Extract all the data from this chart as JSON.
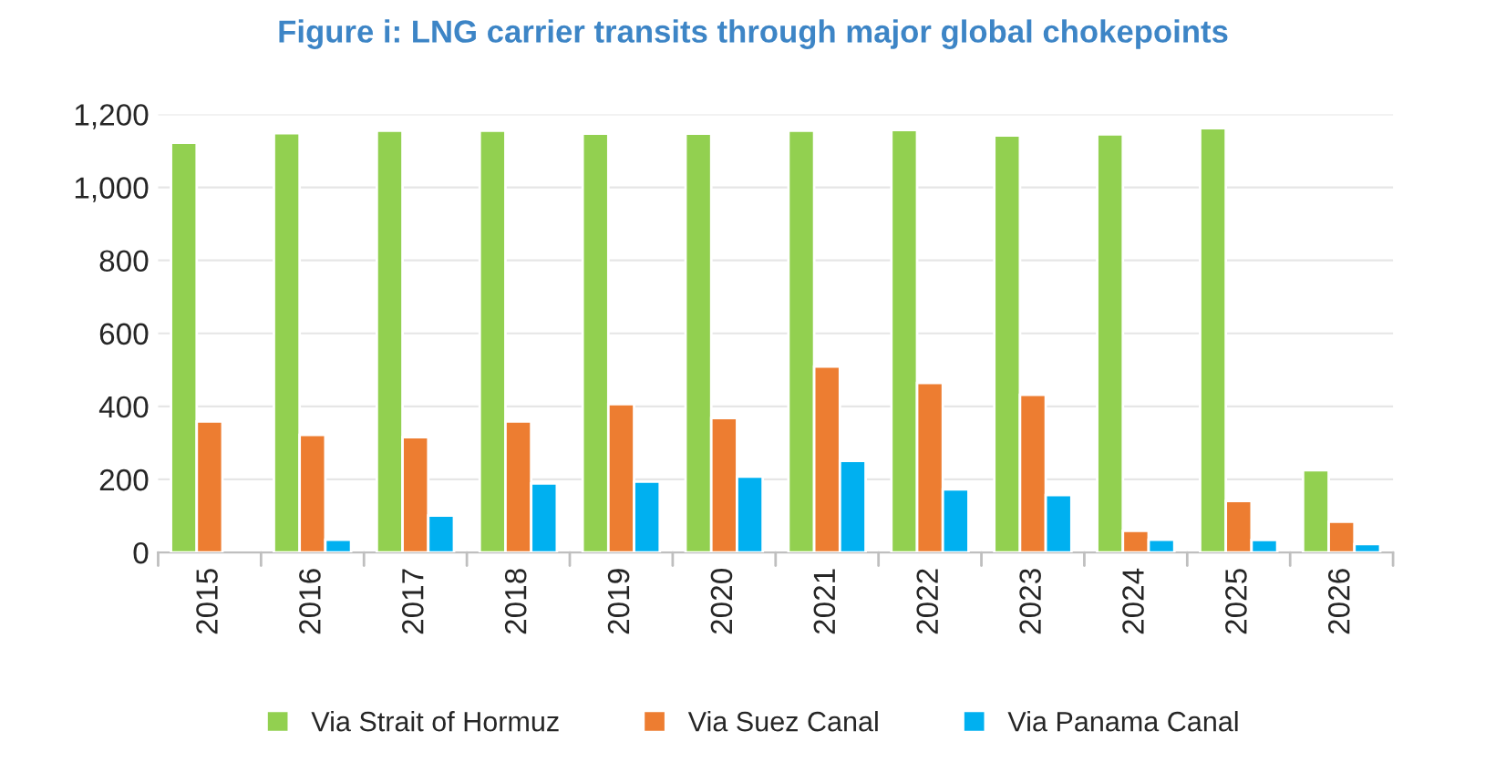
{
  "chart_data": {
    "type": "bar",
    "title": "Figure i: LNG carrier transits through major global chokepoints",
    "categories": [
      "2015",
      "2016",
      "2017",
      "2018",
      "2019",
      "2020",
      "2021",
      "2022",
      "2023",
      "2024",
      "2025",
      "2026"
    ],
    "series": [
      {
        "name": "Via Strait of Hormuz",
        "color": "#92d050",
        "values": [
          1122,
          1148,
          1155,
          1155,
          1147,
          1147,
          1155,
          1157,
          1142,
          1145,
          1162,
          225
        ]
      },
      {
        "name": "Via Suez Canal",
        "color": "#ed7d31",
        "values": [
          359,
          322,
          316,
          359,
          406,
          368,
          509,
          464,
          432,
          59,
          141,
          84
        ]
      },
      {
        "name": "Via Panama Canal",
        "color": "#00b0f0",
        "values": [
          null,
          35,
          101,
          189,
          194,
          208,
          251,
          173,
          157,
          35,
          34,
          23
        ]
      }
    ],
    "ylim": [
      0,
      1200
    ],
    "yticks": [
      {
        "value": 0,
        "label": "0"
      },
      {
        "value": 200,
        "label": "200"
      },
      {
        "value": 400,
        "label": "400"
      },
      {
        "value": 600,
        "label": "600"
      },
      {
        "value": 800,
        "label": "800"
      },
      {
        "value": 1000,
        "label": "1,000"
      },
      {
        "value": 1200,
        "label": "1,200"
      }
    ],
    "grid": "y",
    "legend": "bottom"
  }
}
